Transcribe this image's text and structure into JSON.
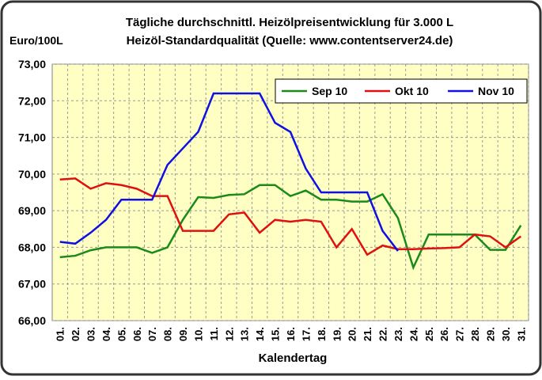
{
  "chart_data": {
    "type": "line",
    "title": "Tägliche durchschnittl. Heizölpreisentwicklung für 3.000 L",
    "subtitle": "Heizöl-Standardqualität (Quelle: www.contentserver24.de)",
    "y_label": "Euro/100L",
    "x_label": "Kalendertag",
    "categories": [
      "01.",
      "02.",
      "03.",
      "04.",
      "05.",
      "06.",
      "07.",
      "08.",
      "09.",
      "10.",
      "11.",
      "12.",
      "13.",
      "14.",
      "15.",
      "16.",
      "17.",
      "18.",
      "19.",
      "20.",
      "21.",
      "22.",
      "23.",
      "24.",
      "25.",
      "26.",
      "27.",
      "28.",
      "29.",
      "30.",
      "31."
    ],
    "ylim": [
      66,
      73
    ],
    "yticks": [
      {
        "value": 66,
        "label": "66,00"
      },
      {
        "value": 67,
        "label": "67,00"
      },
      {
        "value": 68,
        "label": "68,00"
      },
      {
        "value": 69,
        "label": "69,00"
      },
      {
        "value": 70,
        "label": "70,00"
      },
      {
        "value": 71,
        "label": "71,00"
      },
      {
        "value": 72,
        "label": "72,00"
      },
      {
        "value": 73,
        "label": "73,00"
      }
    ],
    "grid": true,
    "legend": "top-right",
    "series": [
      {
        "name": "Sep 10",
        "color": "#1a8a1a",
        "values": [
          67.73,
          67.77,
          67.92,
          68.0,
          68.0,
          68.0,
          67.85,
          68.0,
          68.75,
          69.37,
          69.35,
          69.43,
          69.45,
          69.7,
          69.7,
          69.4,
          69.55,
          69.3,
          69.3,
          69.25,
          69.25,
          69.45,
          68.8,
          67.45,
          68.35,
          68.35,
          68.35,
          68.35,
          67.93,
          67.93,
          68.6
        ]
      },
      {
        "name": "Okt 10",
        "color": "#e01010",
        "values": [
          69.85,
          69.88,
          69.6,
          69.75,
          69.7,
          69.6,
          69.4,
          69.4,
          68.45,
          68.45,
          68.45,
          68.9,
          68.95,
          68.4,
          68.75,
          68.7,
          68.75,
          68.7,
          68.0,
          68.5,
          67.8,
          68.05,
          67.95,
          67.95,
          67.97,
          67.98,
          68.0,
          68.35,
          68.3,
          68.0,
          68.3
        ]
      },
      {
        "name": "Nov 10",
        "color": "#1010e0",
        "values": [
          68.15,
          68.1,
          68.4,
          68.75,
          69.3,
          69.3,
          69.3,
          70.25,
          70.7,
          71.15,
          72.2,
          72.2,
          72.2,
          72.2,
          71.4,
          71.15,
          70.15,
          69.5,
          69.5,
          69.5,
          69.5,
          68.45,
          67.9,
          null,
          null,
          null,
          null,
          null,
          null,
          null,
          null
        ]
      }
    ]
  }
}
